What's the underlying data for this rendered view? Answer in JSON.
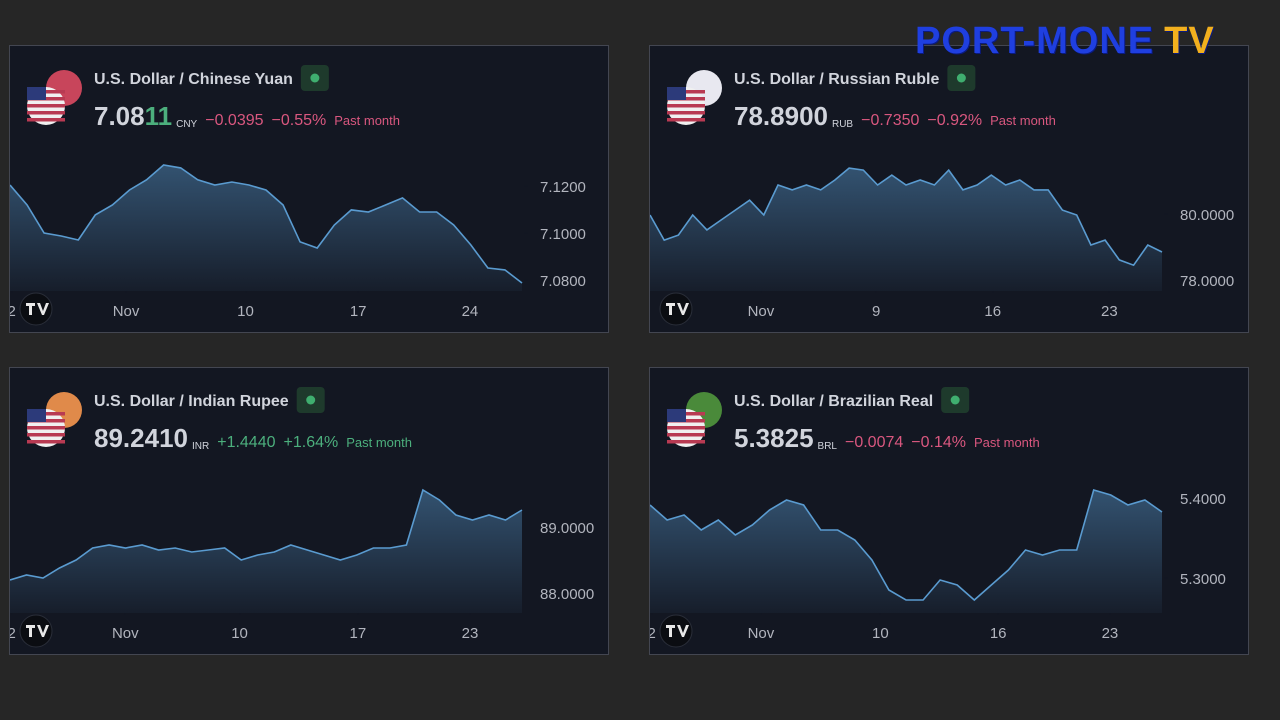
{
  "logo": {
    "name": "PORT-MONE",
    "suffix": "TV"
  },
  "chart_data": [
    {
      "type": "area",
      "title": "U.S. Dollar / Chinese Yuan",
      "price_parts": [
        "7.08",
        "11"
      ],
      "currency": "CNY",
      "change": "−0.0395",
      "change_percent": "−0.55%",
      "period": "Past month",
      "change_color": "#d9577f",
      "color": "#5a9bd0",
      "values": [
        7.1204,
        7.1119,
        7.1,
        7.0987,
        7.097,
        7.1077,
        7.1119,
        7.1183,
        7.1226,
        7.1289,
        7.1277,
        7.1226,
        7.1204,
        7.1217,
        7.1204,
        7.1183,
        7.1119,
        7.0962,
        7.0936,
        7.1034,
        7.1098,
        7.1089,
        7.1119,
        7.1149,
        7.1089,
        7.1089,
        7.1034,
        7.0949,
        7.0851,
        7.0843,
        7.0787
      ],
      "ylim": [
        7.0753,
        7.1353
      ],
      "yticks": [
        {
          "value": 7.08,
          "label": "7.0800"
        },
        {
          "value": 7.1,
          "label": "7.1000"
        },
        {
          "value": 7.12,
          "label": "7.1200"
        }
      ],
      "xlim": [
        0,
        30
      ],
      "xticks": [
        {
          "value": 0.1,
          "label": "2"
        },
        {
          "value": 6.8,
          "label": "Nov"
        },
        {
          "value": 13.8,
          "label": "10"
        },
        {
          "value": 20.4,
          "label": "17"
        },
        {
          "value": 26.95,
          "label": "24"
        }
      ]
    },
    {
      "type": "area",
      "title": "U.S. Dollar / Russian Ruble",
      "price_parts": [
        "78.8900"
      ],
      "currency": "RUB",
      "change": "−0.7350",
      "change_percent": "−0.92%",
      "period": "Past month",
      "change_color": "#d9577f",
      "color": "#5a9bd0",
      "values": [
        79.97,
        79.21,
        79.36,
        79.97,
        79.52,
        79.82,
        80.12,
        80.42,
        79.97,
        80.88,
        80.73,
        80.88,
        80.73,
        81.03,
        81.39,
        81.33,
        80.88,
        81.18,
        80.88,
        81.03,
        80.88,
        81.33,
        80.73,
        80.88,
        81.18,
        80.88,
        81.03,
        80.73,
        80.73,
        80.12,
        79.97,
        79.06,
        79.21,
        78.61,
        78.45,
        79.06,
        78.85
      ],
      "ylim": [
        77.667,
        81.94
      ],
      "yticks": [
        {
          "value": 78,
          "label": "78.0000"
        },
        {
          "value": 80,
          "label": "80.0000"
        }
      ],
      "xlim": [
        0,
        36
      ],
      "xticks": [
        {
          "value": 7.8,
          "label": "Nov"
        },
        {
          "value": 15.9,
          "label": "9"
        },
        {
          "value": 24.1,
          "label": "16"
        },
        {
          "value": 32.3,
          "label": "23"
        }
      ]
    },
    {
      "type": "area",
      "title": "U.S. Dollar / Indian Rupee",
      "price_parts": [
        "89.2410"
      ],
      "currency": "INR",
      "change": "+1.4440",
      "change_percent": "+1.64%",
      "period": "Past month",
      "change_color": "#4caf7d",
      "color": "#5a9bd0",
      "values": [
        88.197,
        88.273,
        88.227,
        88.379,
        88.5,
        88.682,
        88.727,
        88.682,
        88.727,
        88.652,
        88.682,
        88.621,
        88.652,
        88.682,
        88.5,
        88.576,
        88.621,
        88.727,
        88.652,
        88.576,
        88.5,
        88.576,
        88.682,
        88.682,
        88.727,
        89.561,
        89.409,
        89.182,
        89.106,
        89.182,
        89.106,
        89.258
      ],
      "ylim": [
        87.697,
        89.833
      ],
      "yticks": [
        {
          "value": 88,
          "label": "88.0000"
        },
        {
          "value": 89,
          "label": "89.0000"
        }
      ],
      "xlim": [
        0,
        31
      ],
      "xticks": [
        {
          "value": 0.1,
          "label": "2"
        },
        {
          "value": 6.98,
          "label": "Nov"
        },
        {
          "value": 13.9,
          "label": "10"
        },
        {
          "value": 21.06,
          "label": "17"
        },
        {
          "value": 27.85,
          "label": "23"
        }
      ]
    },
    {
      "type": "area",
      "title": "U.S. Dollar / Brazilian Real",
      "price_parts": [
        "5.3825"
      ],
      "currency": "BRL",
      "change": "−0.0074",
      "change_percent": "−0.14%",
      "period": "Past month",
      "change_color": "#d9577f",
      "color": "#5a9bd0",
      "values": [
        5.3913,
        5.3725,
        5.3788,
        5.36,
        5.3725,
        5.3538,
        5.3663,
        5.385,
        5.3975,
        5.3913,
        5.36,
        5.36,
        5.3475,
        5.3225,
        5.285,
        5.2725,
        5.2725,
        5.2975,
        5.2913,
        5.2725,
        5.2913,
        5.31,
        5.335,
        5.3288,
        5.335,
        5.335,
        5.41,
        5.4038,
        5.3913,
        5.3975,
        5.3825
      ],
      "ylim": [
        5.2563,
        5.4325
      ],
      "yticks": [
        {
          "value": 5.3,
          "label": "5.3000"
        },
        {
          "value": 5.4,
          "label": "5.4000"
        }
      ],
      "xlim": [
        0,
        30
      ],
      "xticks": [
        {
          "value": 0.1,
          "label": "2"
        },
        {
          "value": 6.5,
          "label": "Nov"
        },
        {
          "value": 13.5,
          "label": "10"
        },
        {
          "value": 20.4,
          "label": "16"
        },
        {
          "value": 26.95,
          "label": "23"
        }
      ]
    }
  ]
}
